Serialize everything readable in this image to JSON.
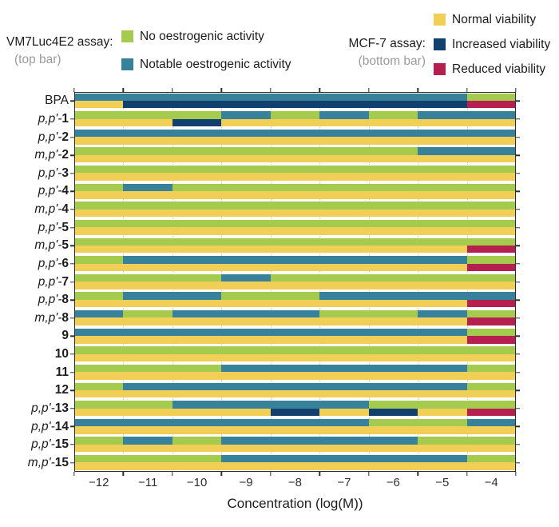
{
  "colors": {
    "G": "#a4ca4e",
    "T": "#38819b",
    "Y": "#f1ce55",
    "N": "#12406e",
    "R": "#b62050"
  },
  "legend": {
    "left": {
      "title": "VM7Luc4E2 assay:",
      "subtitle": "(top bar)",
      "items": [
        {
          "color_key": "G",
          "label": "No oestrogenic activity"
        },
        {
          "color_key": "T",
          "label": "Notable oestrogenic activity"
        }
      ]
    },
    "right": {
      "title": "MCF-7 assay:",
      "subtitle": "(bottom bar)",
      "items": [
        {
          "color_key": "Y",
          "label": "Normal viability"
        },
        {
          "color_key": "N",
          "label": "Increased viability"
        },
        {
          "color_key": "R",
          "label": "Reduced viability"
        }
      ]
    }
  },
  "chart_data": {
    "type": "heatmap",
    "xlabel": "Concentration (log(M))",
    "x_tick_labels": [
      "−12",
      "−11",
      "−10",
      "−9",
      "−8",
      "−7",
      "−6",
      "−5",
      "−4"
    ],
    "x_columns_log_m": [
      -12,
      -11,
      -10,
      -9,
      -8,
      -7,
      -6,
      -5,
      -4
    ],
    "x_range_log_m": [
      -12.5,
      -3.5
    ],
    "grid": "vertical-dotted",
    "legend_position": "top",
    "top_bar_assay": "VM7Luc4E2",
    "bottom_bar_assay": "MCF-7",
    "codes": {
      "G": "No oestrogenic activity",
      "T": "Notable oestrogenic activity",
      "Y": "Normal viability",
      "N": "Increased viability",
      "R": "Reduced viability"
    },
    "rows": [
      {
        "plain": "BPA",
        "top": [
          "T",
          "T",
          "T",
          "T",
          "T",
          "T",
          "T",
          "T",
          "G"
        ],
        "bottom": [
          "Y",
          "N",
          "N",
          "N",
          "N",
          "N",
          "N",
          "N",
          "R"
        ]
      },
      {
        "italic": "p,p'-",
        "bold": "1",
        "top": [
          "G",
          "G",
          "G",
          "T",
          "G",
          "T",
          "G",
          "T",
          "T"
        ],
        "bottom": [
          "Y",
          "Y",
          "N",
          "Y",
          "Y",
          "Y",
          "Y",
          "Y",
          "Y"
        ]
      },
      {
        "italic": "p,p'-",
        "bold": "2",
        "top": [
          "T",
          "T",
          "T",
          "T",
          "T",
          "T",
          "T",
          "T",
          "T"
        ],
        "bottom": [
          "Y",
          "Y",
          "Y",
          "Y",
          "Y",
          "Y",
          "Y",
          "Y",
          "Y"
        ]
      },
      {
        "italic": "m,p'-",
        "bold": "2",
        "top": [
          "G",
          "G",
          "G",
          "G",
          "G",
          "G",
          "G",
          "T",
          "T"
        ],
        "bottom": [
          "Y",
          "Y",
          "Y",
          "Y",
          "Y",
          "Y",
          "Y",
          "Y",
          "Y"
        ]
      },
      {
        "italic": "p,p'-",
        "bold": "3",
        "top": [
          "G",
          "G",
          "G",
          "G",
          "G",
          "G",
          "G",
          "G",
          "G"
        ],
        "bottom": [
          "Y",
          "Y",
          "Y",
          "Y",
          "Y",
          "Y",
          "Y",
          "Y",
          "Y"
        ]
      },
      {
        "italic": "p,p'-",
        "bold": "4",
        "top": [
          "G",
          "T",
          "G",
          "G",
          "G",
          "G",
          "G",
          "G",
          "G"
        ],
        "bottom": [
          "Y",
          "Y",
          "Y",
          "Y",
          "Y",
          "Y",
          "Y",
          "Y",
          "Y"
        ]
      },
      {
        "italic": "m,p'-",
        "bold": "4",
        "top": [
          "G",
          "G",
          "G",
          "G",
          "G",
          "G",
          "G",
          "G",
          "G"
        ],
        "bottom": [
          "Y",
          "Y",
          "Y",
          "Y",
          "Y",
          "Y",
          "Y",
          "Y",
          "Y"
        ]
      },
      {
        "italic": "p,p'-",
        "bold": "5",
        "top": [
          "G",
          "G",
          "G",
          "G",
          "G",
          "G",
          "G",
          "G",
          "G"
        ],
        "bottom": [
          "Y",
          "Y",
          "Y",
          "Y",
          "Y",
          "Y",
          "Y",
          "Y",
          "Y"
        ]
      },
      {
        "italic": "m,p'-",
        "bold": "5",
        "top": [
          "G",
          "G",
          "G",
          "G",
          "G",
          "G",
          "G",
          "G",
          "G"
        ],
        "bottom": [
          "Y",
          "Y",
          "Y",
          "Y",
          "Y",
          "Y",
          "Y",
          "Y",
          "R"
        ]
      },
      {
        "italic": "p,p'-",
        "bold": "6",
        "top": [
          "G",
          "T",
          "T",
          "T",
          "T",
          "T",
          "T",
          "T",
          "G"
        ],
        "bottom": [
          "Y",
          "Y",
          "Y",
          "Y",
          "Y",
          "Y",
          "Y",
          "Y",
          "R"
        ]
      },
      {
        "italic": "p,p'-",
        "bold": "7",
        "top": [
          "G",
          "G",
          "G",
          "T",
          "G",
          "G",
          "G",
          "G",
          "G"
        ],
        "bottom": [
          "Y",
          "Y",
          "Y",
          "Y",
          "Y",
          "Y",
          "Y",
          "Y",
          "Y"
        ]
      },
      {
        "italic": "p,p'-",
        "bold": "8",
        "top": [
          "G",
          "T",
          "T",
          "G",
          "G",
          "T",
          "T",
          "T",
          "T"
        ],
        "bottom": [
          "Y",
          "Y",
          "Y",
          "Y",
          "Y",
          "Y",
          "Y",
          "Y",
          "R"
        ]
      },
      {
        "italic": "m,p'-",
        "bold": "8",
        "top": [
          "T",
          "G",
          "T",
          "T",
          "T",
          "G",
          "G",
          "T",
          "G"
        ],
        "bottom": [
          "Y",
          "Y",
          "Y",
          "Y",
          "Y",
          "Y",
          "Y",
          "Y",
          "R"
        ]
      },
      {
        "bold": "9",
        "top": [
          "T",
          "T",
          "T",
          "T",
          "T",
          "T",
          "T",
          "T",
          "G"
        ],
        "bottom": [
          "Y",
          "Y",
          "Y",
          "Y",
          "Y",
          "Y",
          "Y",
          "Y",
          "R"
        ]
      },
      {
        "bold": "10",
        "top": [
          "G",
          "G",
          "G",
          "G",
          "G",
          "G",
          "G",
          "G",
          "G"
        ],
        "bottom": [
          "Y",
          "Y",
          "Y",
          "Y",
          "Y",
          "Y",
          "Y",
          "Y",
          "Y"
        ]
      },
      {
        "bold": "11",
        "top": [
          "G",
          "G",
          "G",
          "T",
          "T",
          "T",
          "T",
          "T",
          "G"
        ],
        "bottom": [
          "Y",
          "Y",
          "Y",
          "Y",
          "Y",
          "Y",
          "Y",
          "Y",
          "Y"
        ]
      },
      {
        "bold": "12",
        "top": [
          "G",
          "T",
          "T",
          "T",
          "T",
          "T",
          "T",
          "T",
          "G"
        ],
        "bottom": [
          "Y",
          "Y",
          "Y",
          "Y",
          "Y",
          "Y",
          "Y",
          "Y",
          "Y"
        ]
      },
      {
        "italic": "p,p'-",
        "bold": "13",
        "top": [
          "G",
          "G",
          "T",
          "T",
          "T",
          "T",
          "G",
          "G",
          "G"
        ],
        "bottom": [
          "Y",
          "Y",
          "Y",
          "Y",
          "N",
          "Y",
          "N",
          "Y",
          "R"
        ]
      },
      {
        "italic": "p,p'-",
        "bold": "14",
        "top": [
          "T",
          "T",
          "T",
          "T",
          "T",
          "T",
          "G",
          "G",
          "T"
        ],
        "bottom": [
          "Y",
          "Y",
          "Y",
          "Y",
          "Y",
          "Y",
          "Y",
          "Y",
          "Y"
        ]
      },
      {
        "italic": "p,p'-",
        "bold": "15",
        "top": [
          "G",
          "T",
          "G",
          "T",
          "T",
          "T",
          "T",
          "G",
          "G"
        ],
        "bottom": [
          "Y",
          "Y",
          "Y",
          "Y",
          "Y",
          "Y",
          "Y",
          "Y",
          "Y"
        ]
      },
      {
        "italic": "m,p'-",
        "bold": "15",
        "top": [
          "G",
          "G",
          "G",
          "T",
          "T",
          "T",
          "T",
          "T",
          "G"
        ],
        "bottom": [
          "Y",
          "Y",
          "Y",
          "Y",
          "Y",
          "Y",
          "Y",
          "Y",
          "Y"
        ]
      }
    ]
  }
}
